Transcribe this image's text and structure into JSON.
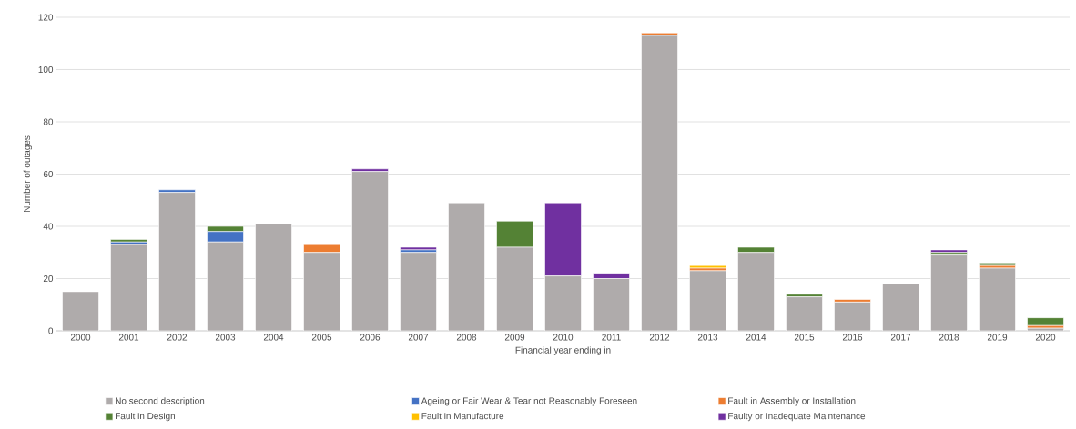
{
  "chart_data": {
    "type": "bar",
    "stacked": true,
    "xlabel": "Financial year ending in",
    "ylabel": "Number of outages",
    "categories": [
      "2000",
      "2001",
      "2002",
      "2003",
      "2004",
      "2005",
      "2006",
      "2007",
      "2008",
      "2009",
      "2010",
      "2011",
      "2012",
      "2013",
      "2014",
      "2015",
      "2016",
      "2017",
      "2018",
      "2019",
      "2020"
    ],
    "series": [
      {
        "name": "No second description",
        "color": "#afabab",
        "values": [
          15,
          33,
          53,
          34,
          41,
          30,
          61,
          30,
          49,
          32,
          21,
          20,
          113,
          23,
          30,
          13,
          11,
          18,
          29,
          24,
          1
        ]
      },
      {
        "name": "Ageing or Fair Wear & Tear not Reasonably Foreseen",
        "color": "#4472c4",
        "values": [
          0,
          1,
          1,
          4,
          0,
          0,
          0,
          1,
          0,
          0,
          0,
          0,
          0,
          0,
          0,
          0,
          0,
          0,
          0,
          0,
          0
        ]
      },
      {
        "name": "Fault in Assembly or Installation",
        "color": "#ed7d31",
        "values": [
          0,
          0,
          0,
          0,
          0,
          3,
          0,
          0,
          0,
          0,
          0,
          0,
          1,
          1,
          0,
          0,
          1,
          0,
          0,
          1,
          1
        ]
      },
      {
        "name": "Fault in Design",
        "color": "#548235",
        "values": [
          0,
          1,
          0,
          2,
          0,
          0,
          0,
          0,
          0,
          10,
          0,
          0,
          0,
          0,
          2,
          1,
          0,
          0,
          1,
          1,
          3
        ]
      },
      {
        "name": "Fault in Manufacture",
        "color": "#ffc000",
        "values": [
          0,
          0,
          0,
          0,
          0,
          0,
          0,
          0,
          0,
          0,
          0,
          0,
          0,
          1,
          0,
          0,
          0,
          0,
          0,
          0,
          0
        ]
      },
      {
        "name": "Faulty or Inadequate Maintenance",
        "color": "#7030a0",
        "values": [
          0,
          0,
          0,
          0,
          0,
          0,
          1,
          1,
          0,
          0,
          28,
          2,
          0,
          0,
          0,
          0,
          0,
          0,
          1,
          0,
          0
        ]
      }
    ],
    "ylim": [
      0,
      120
    ],
    "yticks": [
      0,
      20,
      40,
      60,
      80,
      100,
      120
    ],
    "grid": "y",
    "legend": "bottom"
  }
}
